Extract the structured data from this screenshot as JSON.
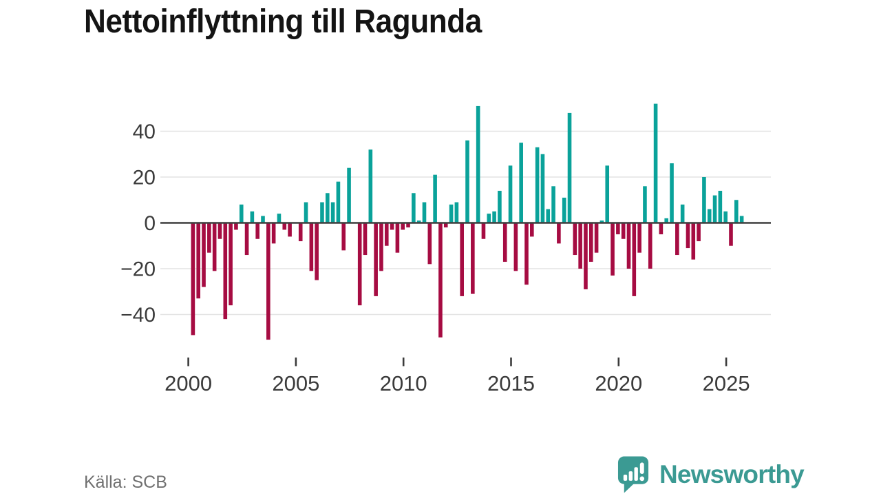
{
  "title": "Nettoinflyttning till Ragunda",
  "source": {
    "text": "Källa: SCB"
  },
  "logo": {
    "text": "Newsworthy",
    "color": "#3b9a93"
  },
  "chart_data": {
    "type": "bar",
    "title": "Nettoinflyttning till Ragunda",
    "series_name": "Nettoinflyttning (netto per kvartal)",
    "frequency": "quarterly",
    "start_year": 2000,
    "start_quarter": 1,
    "years": [
      {
        "year": 2000,
        "q": [
          -49,
          -33,
          -28,
          -13
        ]
      },
      {
        "year": 2001,
        "q": [
          -21,
          -7,
          -42,
          -36
        ]
      },
      {
        "year": 2002,
        "q": [
          -3,
          8,
          -14,
          5
        ]
      },
      {
        "year": 2003,
        "q": [
          -7,
          3,
          -51,
          -9
        ]
      },
      {
        "year": 2004,
        "q": [
          4,
          -3,
          -6,
          0
        ]
      },
      {
        "year": 2005,
        "q": [
          -8,
          9,
          -21,
          -25
        ]
      },
      {
        "year": 2006,
        "q": [
          9,
          13,
          9,
          18
        ]
      },
      {
        "year": 2007,
        "q": [
          -12,
          24,
          0,
          -36
        ]
      },
      {
        "year": 2008,
        "q": [
          -14,
          32,
          -32,
          -21
        ]
      },
      {
        "year": 2009,
        "q": [
          -10,
          -3,
          -13,
          -3
        ]
      },
      {
        "year": 2010,
        "q": [
          -2,
          13,
          1,
          9
        ]
      },
      {
        "year": 2011,
        "q": [
          -18,
          21,
          -50,
          -2
        ]
      },
      {
        "year": 2012,
        "q": [
          8,
          9,
          -32,
          36
        ]
      },
      {
        "year": 2013,
        "q": [
          -31,
          51,
          -7,
          4
        ]
      },
      {
        "year": 2014,
        "q": [
          5,
          14,
          -17,
          25
        ]
      },
      {
        "year": 2015,
        "q": [
          -21,
          35,
          -27,
          -6
        ]
      },
      {
        "year": 2016,
        "q": [
          33,
          30,
          6,
          16
        ]
      },
      {
        "year": 2017,
        "q": [
          -9,
          11,
          48,
          -14
        ]
      },
      {
        "year": 2018,
        "q": [
          -20,
          -29,
          -17,
          -13
        ]
      },
      {
        "year": 2019,
        "q": [
          1,
          25,
          -23,
          -5
        ]
      },
      {
        "year": 2020,
        "q": [
          -7,
          -20,
          -32,
          -13
        ]
      },
      {
        "year": 2021,
        "q": [
          16,
          -20,
          52,
          -5
        ]
      },
      {
        "year": 2022,
        "q": [
          2,
          26,
          -14,
          8
        ]
      },
      {
        "year": 2023,
        "q": [
          -11,
          -16,
          -8,
          20
        ]
      },
      {
        "year": 2024,
        "q": [
          6,
          12,
          14,
          5
        ]
      },
      {
        "year": 2025,
        "q": [
          -10,
          10,
          3
        ]
      }
    ],
    "x_ticks": [
      2000,
      2005,
      2010,
      2015,
      2020,
      2025
    ],
    "x_tick_labels": [
      "2000",
      "2005",
      "2010",
      "2015",
      "2020",
      "2025"
    ],
    "y_ticks": [
      40,
      20,
      0,
      -20,
      -40
    ],
    "y_tick_labels": [
      "40",
      "20",
      "0",
      "−20",
      "−40"
    ],
    "ylim": [
      -55,
      55
    ],
    "xlabel": "",
    "ylabel": "",
    "grid": true,
    "legend": false,
    "positive_color": "#0aa29a",
    "negative_color": "#a60c42",
    "axis_text_color": "#3b3b3b",
    "grid_color": "#e3e3e3",
    "zero_line_color": "#3f3f3f",
    "source": "Källa: SCB"
  }
}
